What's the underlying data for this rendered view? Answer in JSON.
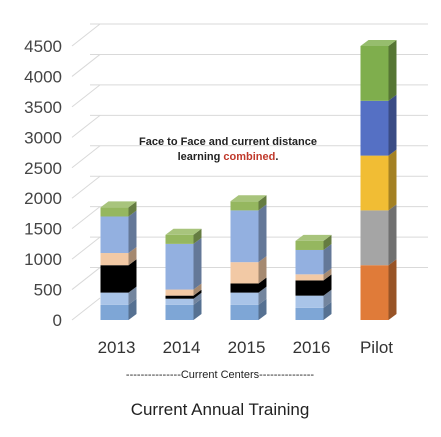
{
  "chart_data": {
    "type": "bar",
    "stacked": true,
    "three_d": true,
    "title": "Current Annual Training",
    "xlabel": "",
    "ylabel": "",
    "ylim": [
      0,
      4500
    ],
    "yticks": [
      0,
      500,
      1000,
      1500,
      2000,
      2500,
      3000,
      3500,
      4000,
      4500
    ],
    "grid": true,
    "legend": "none",
    "categories": [
      "2013",
      "2014",
      "2015",
      "2016",
      "Pilot"
    ],
    "group_label": "---------------Current Centers---------------",
    "annotation": {
      "line1": "Face to Face and current distance",
      "line2_pre": "learning ",
      "line2_highlight": "combined",
      "line2_post": "."
    },
    "colors": [
      "#7ea6d6",
      "#a9c4e8",
      "#000000",
      "#f2c9a5",
      "#93b0e0",
      "#95b75f",
      "#e07b39",
      "#a5a5a5",
      "#f1bd34",
      "#5570c4",
      "#7fae4d"
    ],
    "stacks": [
      {
        "category": "2013",
        "segments": [
          {
            "value": 250,
            "color": "#7ea6d6"
          },
          {
            "value": 200,
            "color": "#a9c4e8"
          },
          {
            "value": 450,
            "color": "#000000"
          },
          {
            "value": 200,
            "color": "#f2c9a5"
          },
          {
            "value": 600,
            "color": "#93b0e0"
          },
          {
            "value": 150,
            "color": "#95b75f"
          }
        ]
      },
      {
        "category": "2014",
        "segments": [
          {
            "value": 250,
            "color": "#7ea6d6"
          },
          {
            "value": 100,
            "color": "#a9c4e8"
          },
          {
            "value": 50,
            "color": "#000000"
          },
          {
            "value": 100,
            "color": "#f2c9a5"
          },
          {
            "value": 750,
            "color": "#93b0e0"
          },
          {
            "value": 150,
            "color": "#95b75f"
          }
        ]
      },
      {
        "category": "2015",
        "segments": [
          {
            "value": 250,
            "color": "#7ea6d6"
          },
          {
            "value": 200,
            "color": "#a9c4e8"
          },
          {
            "value": 150,
            "color": "#000000"
          },
          {
            "value": 350,
            "color": "#f2c9a5"
          },
          {
            "value": 850,
            "color": "#93b0e0"
          },
          {
            "value": 150,
            "color": "#95b75f"
          }
        ]
      },
      {
        "category": "2016",
        "segments": [
          {
            "value": 200,
            "color": "#7ea6d6"
          },
          {
            "value": 200,
            "color": "#a9c4e8"
          },
          {
            "value": 250,
            "color": "#000000"
          },
          {
            "value": 100,
            "color": "#f2c9a5"
          },
          {
            "value": 400,
            "color": "#93b0e0"
          },
          {
            "value": 150,
            "color": "#95b75f"
          }
        ]
      },
      {
        "category": "Pilot",
        "segments": [
          {
            "value": 900,
            "color": "#e07b39"
          },
          {
            "value": 900,
            "color": "#a5a5a5"
          },
          {
            "value": 900,
            "color": "#f1bd34"
          },
          {
            "value": 900,
            "color": "#5570c4"
          },
          {
            "value": 900,
            "color": "#7fae4d"
          }
        ]
      }
    ]
  }
}
